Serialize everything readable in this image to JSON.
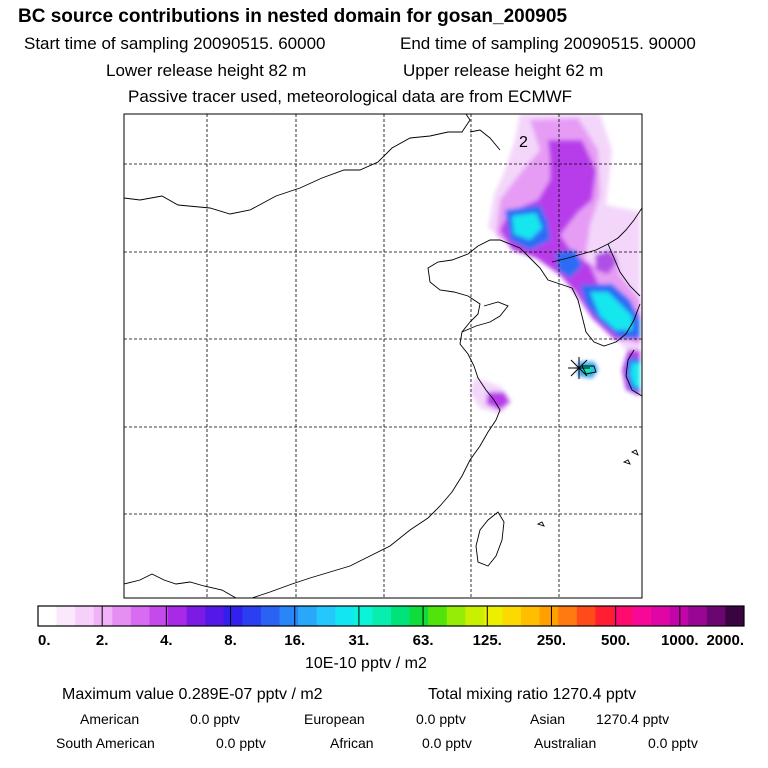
{
  "header": {
    "title": "BC  source contributions in nested domain for gosan_200905",
    "start_time": "Start time of sampling 20090515. 60000",
    "end_time": "End time of sampling 20090515. 90000",
    "lower_release": "Lower release height   82 m",
    "upper_release": "Upper release height   62 m",
    "tracer_note": "Passive tracer used, meteorological data are from ECMWF"
  },
  "map": {
    "contour_label": "2",
    "receptor_marker": "star-icon"
  },
  "colorbar": {
    "colors": [
      "#ffffff",
      "#fbe8fc",
      "#f6d0fa",
      "#f0b3f7",
      "#e58ff3",
      "#d86cf0",
      "#c54aeb",
      "#a829e6",
      "#7b1be4",
      "#5418e8",
      "#3320ee",
      "#2a3ff2",
      "#2a62f4",
      "#2a86f7",
      "#2aa7f8",
      "#24c8fa",
      "#12e6f3",
      "#0cf4d8",
      "#08eeae",
      "#00e27a",
      "#10dc3e",
      "#52e40a",
      "#96ec06",
      "#c8f000",
      "#ecf000",
      "#fcd900",
      "#ffbe00",
      "#ffa000",
      "#ff7a10",
      "#ff4a1a",
      "#ff1e32",
      "#ff0a6e",
      "#f80896",
      "#e006a6",
      "#c204a8",
      "#9a0694",
      "#6a0670",
      "#3a0440"
    ],
    "tick_labels": [
      "0.",
      "2.",
      "4.",
      "8.",
      "16.",
      "31.",
      "63.",
      "125.",
      "250.",
      "500.",
      "1000.",
      "2000."
    ],
    "units": "10E-10 pptv / m2"
  },
  "summary": {
    "max_value": "Maximum value  0.289E-07 pptv / m2",
    "total_mixing": "Total mixing ratio     1270.4 pptv",
    "regions": [
      {
        "name": "American",
        "value": "0.0 pptv"
      },
      {
        "name": "European",
        "value": "0.0 pptv"
      },
      {
        "name": "Asian",
        "value": "1270.4 pptv"
      },
      {
        "name": "South American",
        "value": "0.0 pptv"
      },
      {
        "name": "African",
        "value": "0.0 pptv"
      },
      {
        "name": "Australian",
        "value": "0.0 pptv"
      }
    ]
  }
}
